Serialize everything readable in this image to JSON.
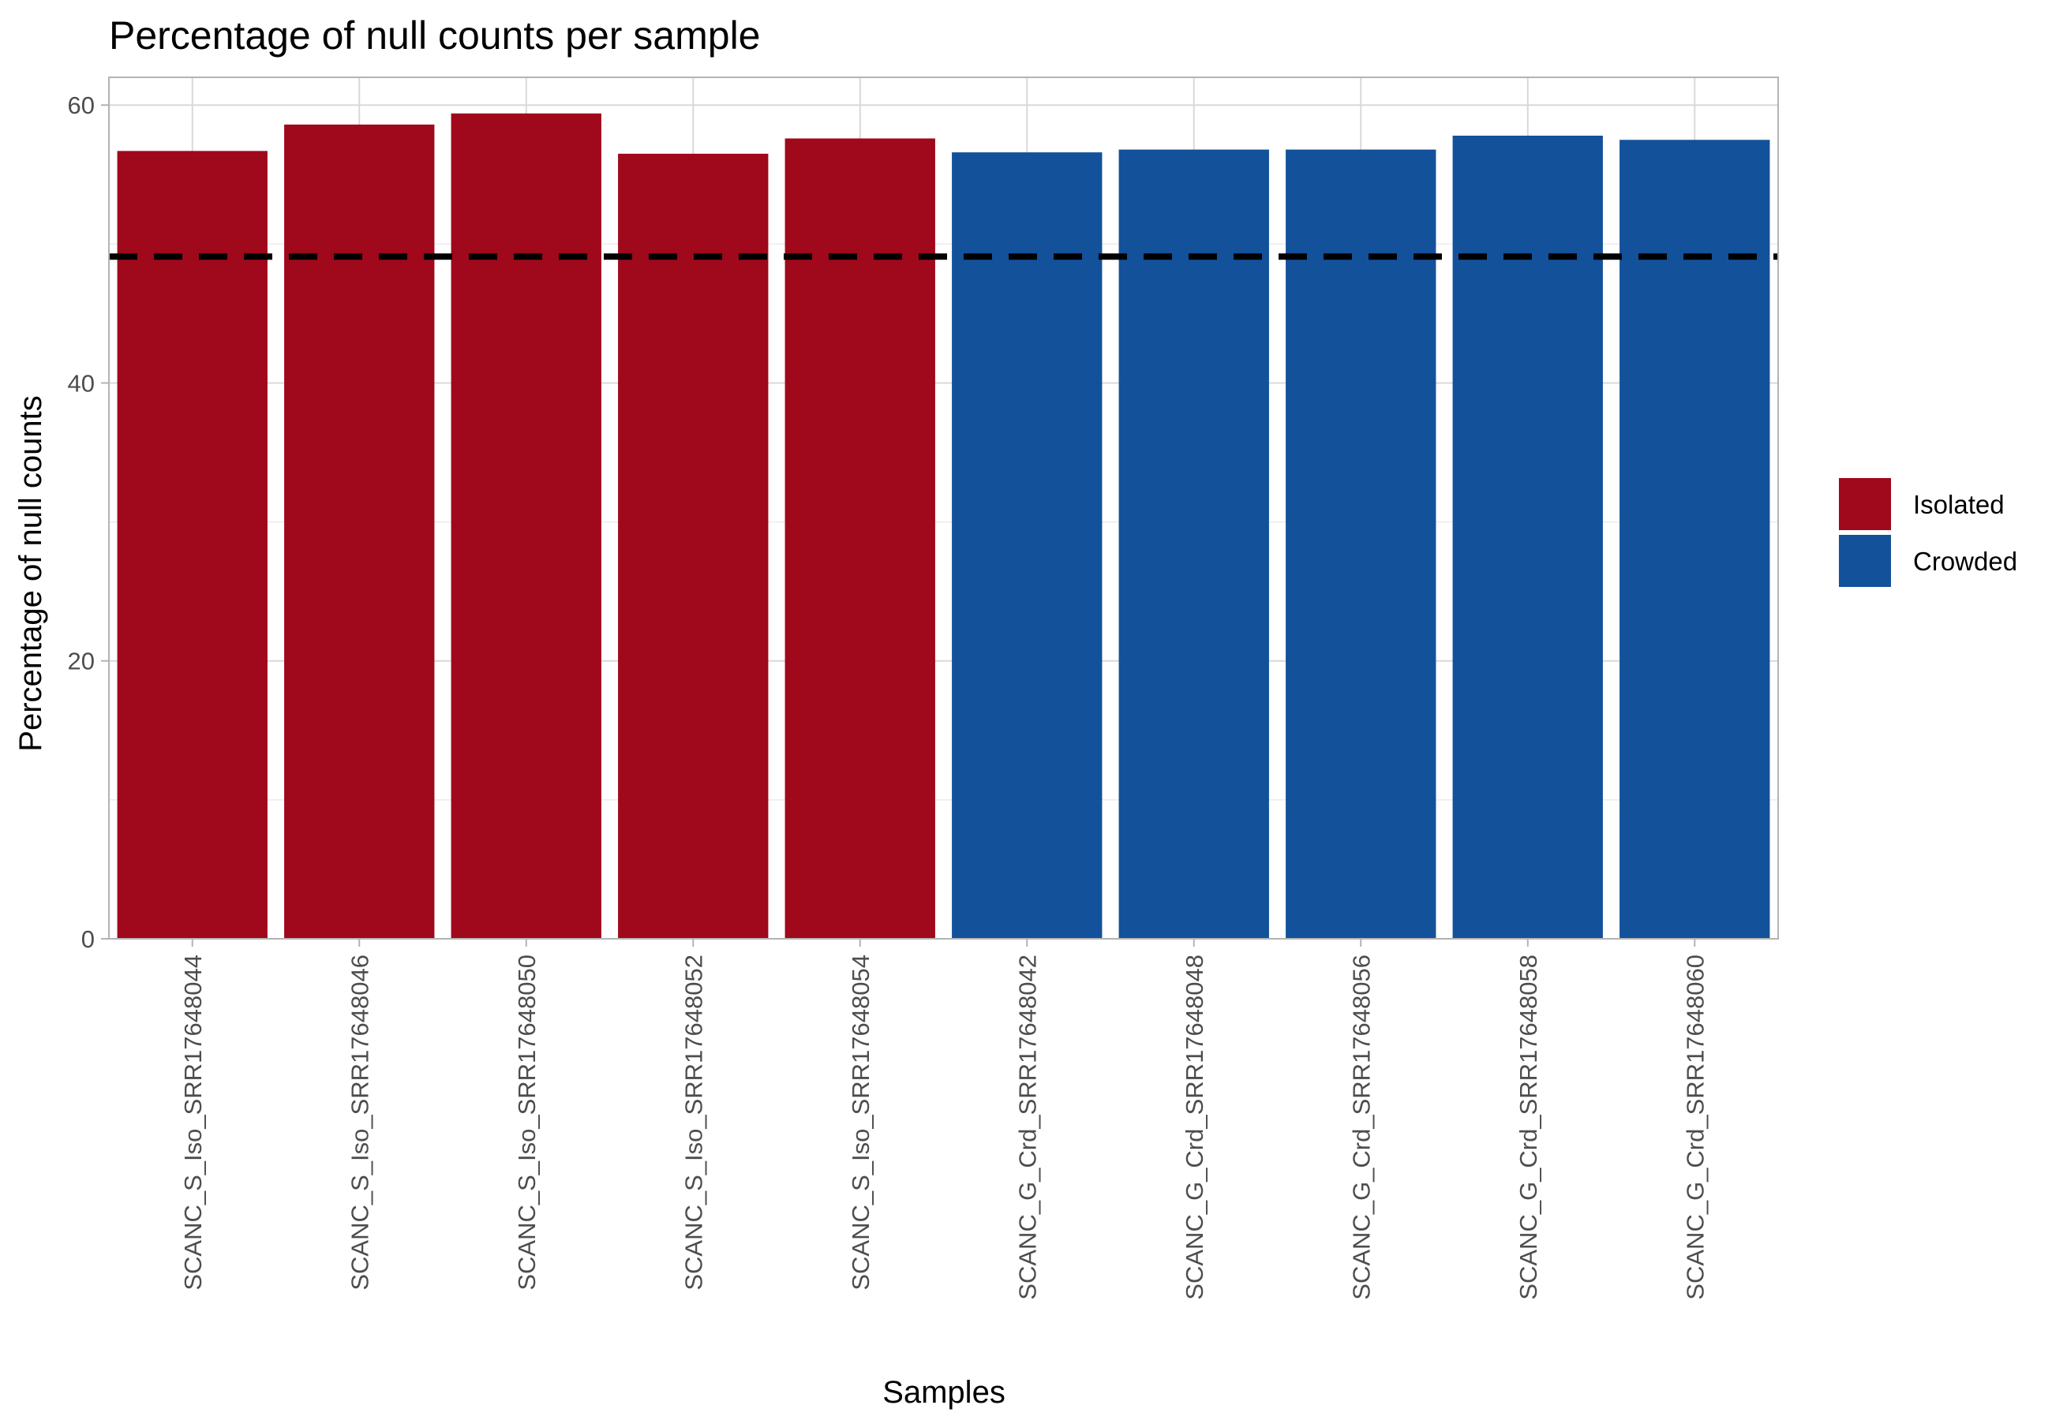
{
  "chart_data": {
    "type": "bar",
    "title": "Percentage of null counts per sample",
    "xlabel": "Samples",
    "ylabel": "Percentage of null counts",
    "categories": [
      "SCANC_S_Iso_SRR17648044",
      "SCANC_S_Iso_SRR17648046",
      "SCANC_S_Iso_SRR17648050",
      "SCANC_S_Iso_SRR17648052",
      "SCANC_S_Iso_SRR17648054",
      "SCANC_G_Crd_SRR17648042",
      "SCANC_G_Crd_SRR17648048",
      "SCANC_G_Crd_SRR17648056",
      "SCANC_G_Crd_SRR17648058",
      "SCANC_G_Crd_SRR17648060"
    ],
    "values": [
      56.7,
      58.6,
      59.4,
      56.5,
      57.6,
      56.6,
      56.8,
      56.8,
      57.8,
      57.5
    ],
    "groups": [
      "Isolated",
      "Isolated",
      "Isolated",
      "Isolated",
      "Isolated",
      "Crowded",
      "Crowded",
      "Crowded",
      "Crowded",
      "Crowded"
    ],
    "ylim": [
      0,
      62
    ],
    "yticks": [
      0,
      20,
      40,
      60
    ],
    "reference_line": {
      "value": 49.1,
      "style": "dashed",
      "color": "#000000"
    },
    "legend": {
      "position": "right",
      "entries": [
        {
          "name": "Isolated",
          "color": "#A0081B"
        },
        {
          "name": "Crowded",
          "color": "#13519B"
        }
      ]
    },
    "grid": true
  }
}
